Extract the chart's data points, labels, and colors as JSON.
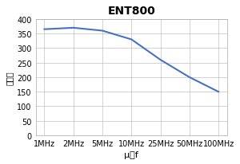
{
  "title": "ENT800",
  "xlabel": "μ－f",
  "ylabel": "磁导率",
  "x_labels": [
    "1MHz",
    "2MHz",
    "5MHz",
    "10MHz",
    "25MHz",
    "50MHz",
    "100MHz"
  ],
  "y_values": [
    365,
    370,
    360,
    330,
    260,
    200,
    150
  ],
  "ylim": [
    0,
    400
  ],
  "yticks": [
    0,
    50,
    100,
    150,
    200,
    250,
    300,
    350,
    400
  ],
  "line_color": "#4472c4",
  "line_width": 1.5,
  "grid_color": "#c0c0c0",
  "background_color": "#ffffff",
  "title_fontsize": 10,
  "label_fontsize": 8,
  "tick_fontsize": 7,
  "ylabel_fontsize": 7
}
